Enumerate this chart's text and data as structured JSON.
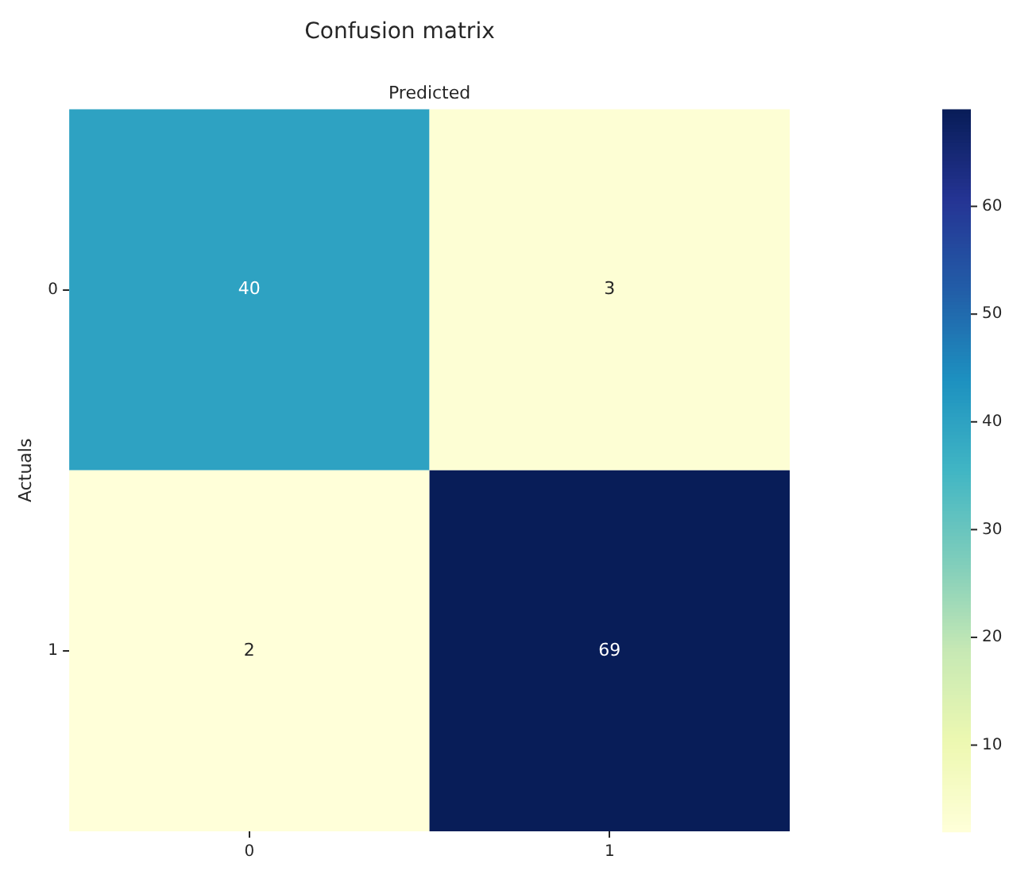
{
  "chart_data": {
    "type": "heatmap",
    "title": "Confusion matrix",
    "xlabel": "Predicted",
    "ylabel": "Actuals",
    "categories": [
      "0",
      "1"
    ],
    "y_categories": [
      "0",
      "1"
    ],
    "cells": [
      [
        40,
        3
      ],
      [
        2,
        69
      ]
    ],
    "clim": [
      2,
      69
    ],
    "cticks": [
      10,
      20,
      30,
      40,
      50,
      60
    ],
    "data_labels": true
  }
}
